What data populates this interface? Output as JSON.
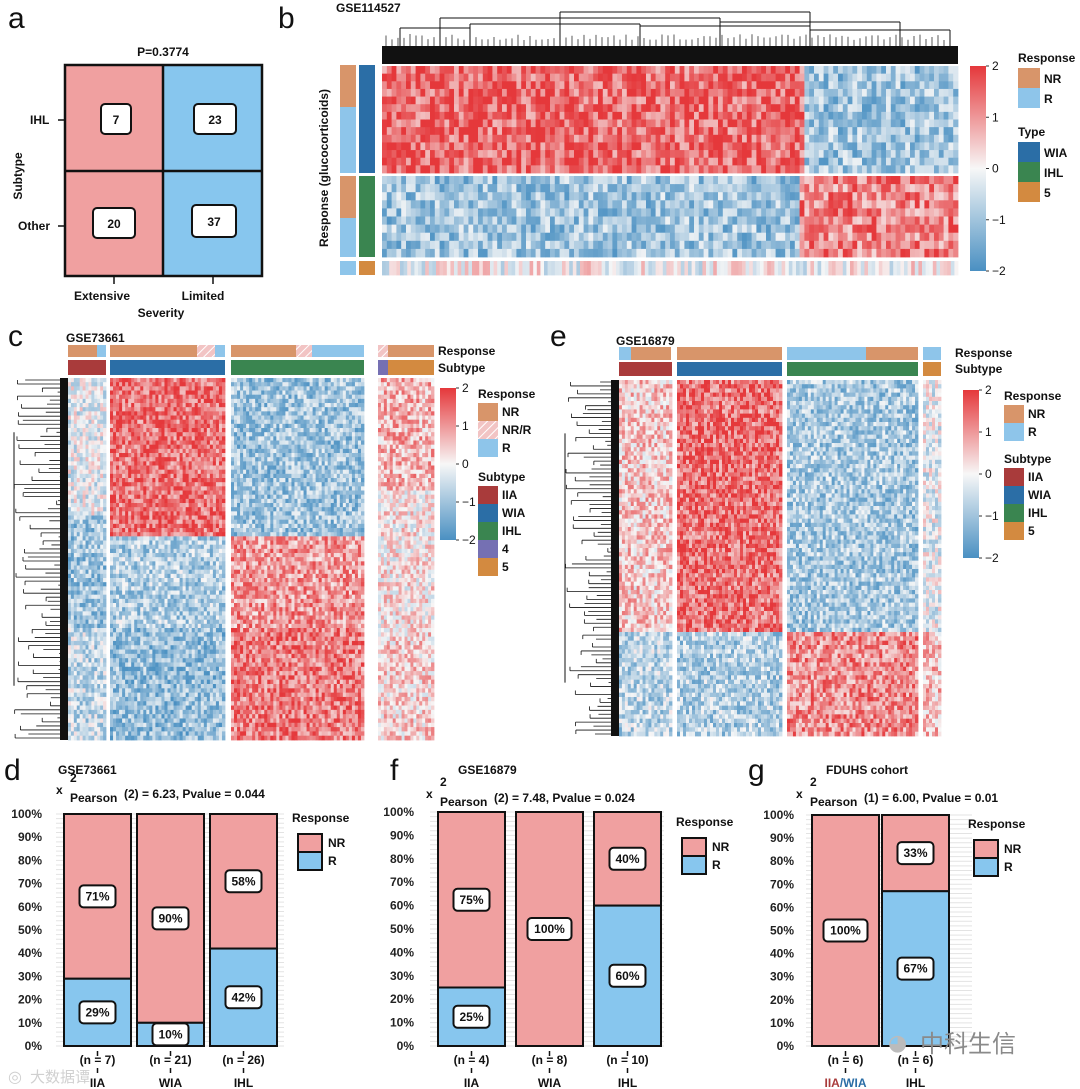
{
  "colors": {
    "hi": "#e5383b",
    "mid": "#f7f7f7",
    "lo": "#4a90c2",
    "NR": "#d8956a",
    "R": "#8ec5ea",
    "NR_R": "#f2c4c4",
    "IIA": "#a93b3b",
    "WIA": "#2b6ea6",
    "IHL": "#3a8550",
    "four": "#7570b3",
    "five": "#d38a40",
    "barNR": "#f0a0a0",
    "barR": "#87c6ee",
    "mosNR": "#f0a0a0",
    "mosR": "#87c6ee"
  },
  "panels": {
    "a": "a",
    "b": "b",
    "c": "c",
    "d": "d",
    "e": "e",
    "f": "f",
    "g": "g"
  },
  "chart_data": [
    {
      "panel": "a",
      "type": "table",
      "title": "P=0.3774",
      "xlabel": "Severity",
      "ylabel": "Subtype",
      "columns": [
        "Extensive",
        "Limited"
      ],
      "rows": [
        "IHL",
        "Other"
      ],
      "cells": [
        [
          7,
          23
        ],
        [
          20,
          37
        ]
      ]
    },
    {
      "panel": "b",
      "type": "heatmap",
      "title": "GSE114527",
      "ylabel": "Response (glucocorticoids)",
      "legend": {
        "response_title": "Response",
        "response": [
          "NR",
          "R"
        ],
        "type_title": "Type",
        "type": [
          "WIA",
          "IHL",
          "5"
        ]
      },
      "scale_ticks": [
        "2",
        "1",
        "0",
        "−1",
        "−2"
      ]
    },
    {
      "panel": "c",
      "type": "heatmap",
      "title": "GSE73661",
      "annotation_rows": [
        "Response",
        "Subtype"
      ],
      "legend": {
        "response_title": "Response",
        "response": [
          "NR",
          "NR/R",
          "R"
        ],
        "subtype_title": "Subtype",
        "subtype": [
          "IIA",
          "WIA",
          "IHL",
          "4",
          "5"
        ]
      },
      "scale_ticks": [
        "2",
        "1",
        "0",
        "−1",
        "−2"
      ]
    },
    {
      "panel": "e",
      "type": "heatmap",
      "title": "GSE16879",
      "annotation_rows": [
        "Response",
        "Subtype"
      ],
      "legend": {
        "response_title": "Response",
        "response": [
          "NR",
          "R"
        ],
        "subtype_title": "Subtype",
        "subtype": [
          "IIA",
          "WIA",
          "IHL",
          "5"
        ]
      },
      "scale_ticks": [
        "2",
        "1",
        "0",
        "−1",
        "−2"
      ]
    },
    {
      "panel": "d",
      "type": "bar",
      "title": "GSE73661",
      "stat_x": "x",
      "stat_sup": "2",
      "stat_sub": "Pearson",
      "stat_text": "(2) = 6.23,    Pvalue = 0.044",
      "legend_title": "Response",
      "legend": [
        "NR",
        "R"
      ],
      "categories": [
        "IIA",
        "WIA",
        "IHL"
      ],
      "counts": [
        "(n = 7)",
        "(n = 21)",
        "(n = 26)"
      ],
      "series": [
        {
          "name": "NR",
          "values": [
            71,
            90,
            58
          ],
          "labels": [
            "71%",
            "90%",
            "58%"
          ]
        },
        {
          "name": "R",
          "values": [
            29,
            10,
            42
          ],
          "labels": [
            "29%",
            "10%",
            "42%"
          ]
        }
      ],
      "yticks": [
        "100%",
        "90%",
        "80%",
        "70%",
        "60%",
        "50%",
        "40%",
        "30%",
        "20%",
        "10%",
        "0%"
      ]
    },
    {
      "panel": "f",
      "type": "bar",
      "title": "GSE16879",
      "stat_x": "x",
      "stat_sup": "2",
      "stat_sub": "Pearson",
      "stat_text": "(2) = 7.48,    Pvalue = 0.024",
      "legend_title": "Response",
      "legend": [
        "NR",
        "R"
      ],
      "categories": [
        "IIA",
        "WIA",
        "IHL"
      ],
      "counts": [
        "(n = 4)",
        "(n = 8)",
        "(n = 10)"
      ],
      "series": [
        {
          "name": "NR",
          "values": [
            75,
            100,
            40
          ],
          "labels": [
            "75%",
            "100%",
            "40%"
          ]
        },
        {
          "name": "R",
          "values": [
            25,
            0,
            60
          ],
          "labels": [
            "25%",
            "",
            "60%"
          ]
        }
      ],
      "yticks": [
        "100%",
        "90%",
        "80%",
        "70%",
        "60%",
        "50%",
        "40%",
        "30%",
        "20%",
        "10%",
        "0%"
      ]
    },
    {
      "panel": "g",
      "type": "bar",
      "title": "FDUHS cohort",
      "stat_x": "x",
      "stat_sup": "2",
      "stat_sub": "Pearson",
      "stat_text": "(1) = 6.00,     Pvalue = 0.01",
      "legend_title": "Response",
      "legend": [
        "NR",
        "R"
      ],
      "categories": [
        "IIA/WIA",
        "IHL"
      ],
      "counts": [
        "(n = 6)",
        "(n = 6)"
      ],
      "series": [
        {
          "name": "NR",
          "values": [
            100,
            33
          ],
          "labels": [
            "100%",
            "33%"
          ]
        },
        {
          "name": "R",
          "values": [
            0,
            67
          ],
          "labels": [
            "",
            "67%"
          ]
        }
      ],
      "yticks": [
        "100%",
        "90%",
        "80%",
        "70%",
        "60%",
        "50%",
        "40%",
        "30%",
        "20%",
        "10%",
        "0%"
      ]
    }
  ],
  "watermark": {
    "left": "大数据谭",
    "right": "中科生信"
  }
}
